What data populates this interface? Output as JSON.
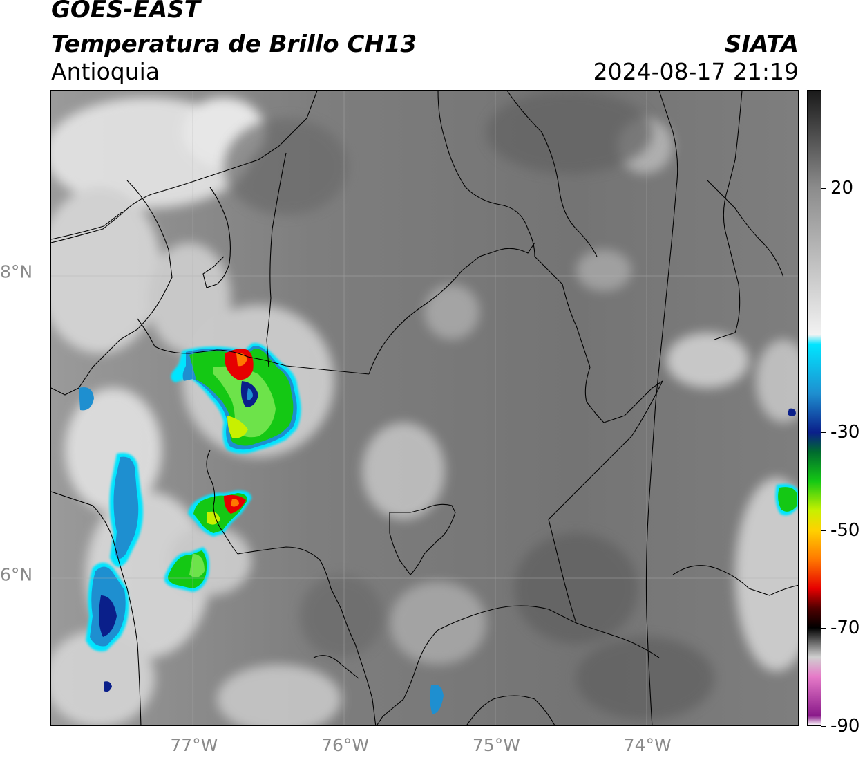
{
  "header": {
    "satellite": "GOES-EAST",
    "product": "Temperatura de Brillo CH13",
    "region": "Antioquia",
    "agency": "SIATA",
    "datetime": "2024-08-17 21:19"
  },
  "map": {
    "longitude_labels": [
      "77°W",
      "76°W",
      "75°W",
      "74°W"
    ],
    "latitude_labels": [
      "8°N",
      "6°N"
    ],
    "longitude_values": [
      -77,
      -76,
      -75,
      -74
    ],
    "latitude_values": [
      8,
      6
    ],
    "lon_range": [
      -77.95,
      -73.0
    ],
    "lat_range": [
      5.0,
      9.2
    ]
  },
  "colorbar": {
    "tick_labels": [
      "20",
      "-30",
      "-50",
      "-70",
      "-90"
    ],
    "tick_values": [
      20,
      -30,
      -50,
      -70,
      -90
    ],
    "range": [
      -90,
      40
    ],
    "palette_stops": [
      {
        "value": 40,
        "color": "#1a1a1a"
      },
      {
        "value": 20,
        "color": "#8c8c8c"
      },
      {
        "value": -10,
        "color": "#f2f2f2"
      },
      {
        "value": -12,
        "color": "#00e5ff"
      },
      {
        "value": -22,
        "color": "#1e8fd0"
      },
      {
        "value": -30,
        "color": "#0a1f8a"
      },
      {
        "value": -34,
        "color": "#006b2e"
      },
      {
        "value": -40,
        "color": "#14c814"
      },
      {
        "value": -46,
        "color": "#c8f000"
      },
      {
        "value": -50,
        "color": "#ffd200"
      },
      {
        "value": -56,
        "color": "#ff7800"
      },
      {
        "value": -62,
        "color": "#e60000"
      },
      {
        "value": -66,
        "color": "#500000"
      },
      {
        "value": -70,
        "color": "#000000"
      },
      {
        "value": -76,
        "color": "#cfcfcf"
      },
      {
        "value": -80,
        "color": "#e67ac8"
      },
      {
        "value": -88,
        "color": "#8a1a8a"
      },
      {
        "value": -90,
        "color": "#ffffff"
      }
    ]
  }
}
